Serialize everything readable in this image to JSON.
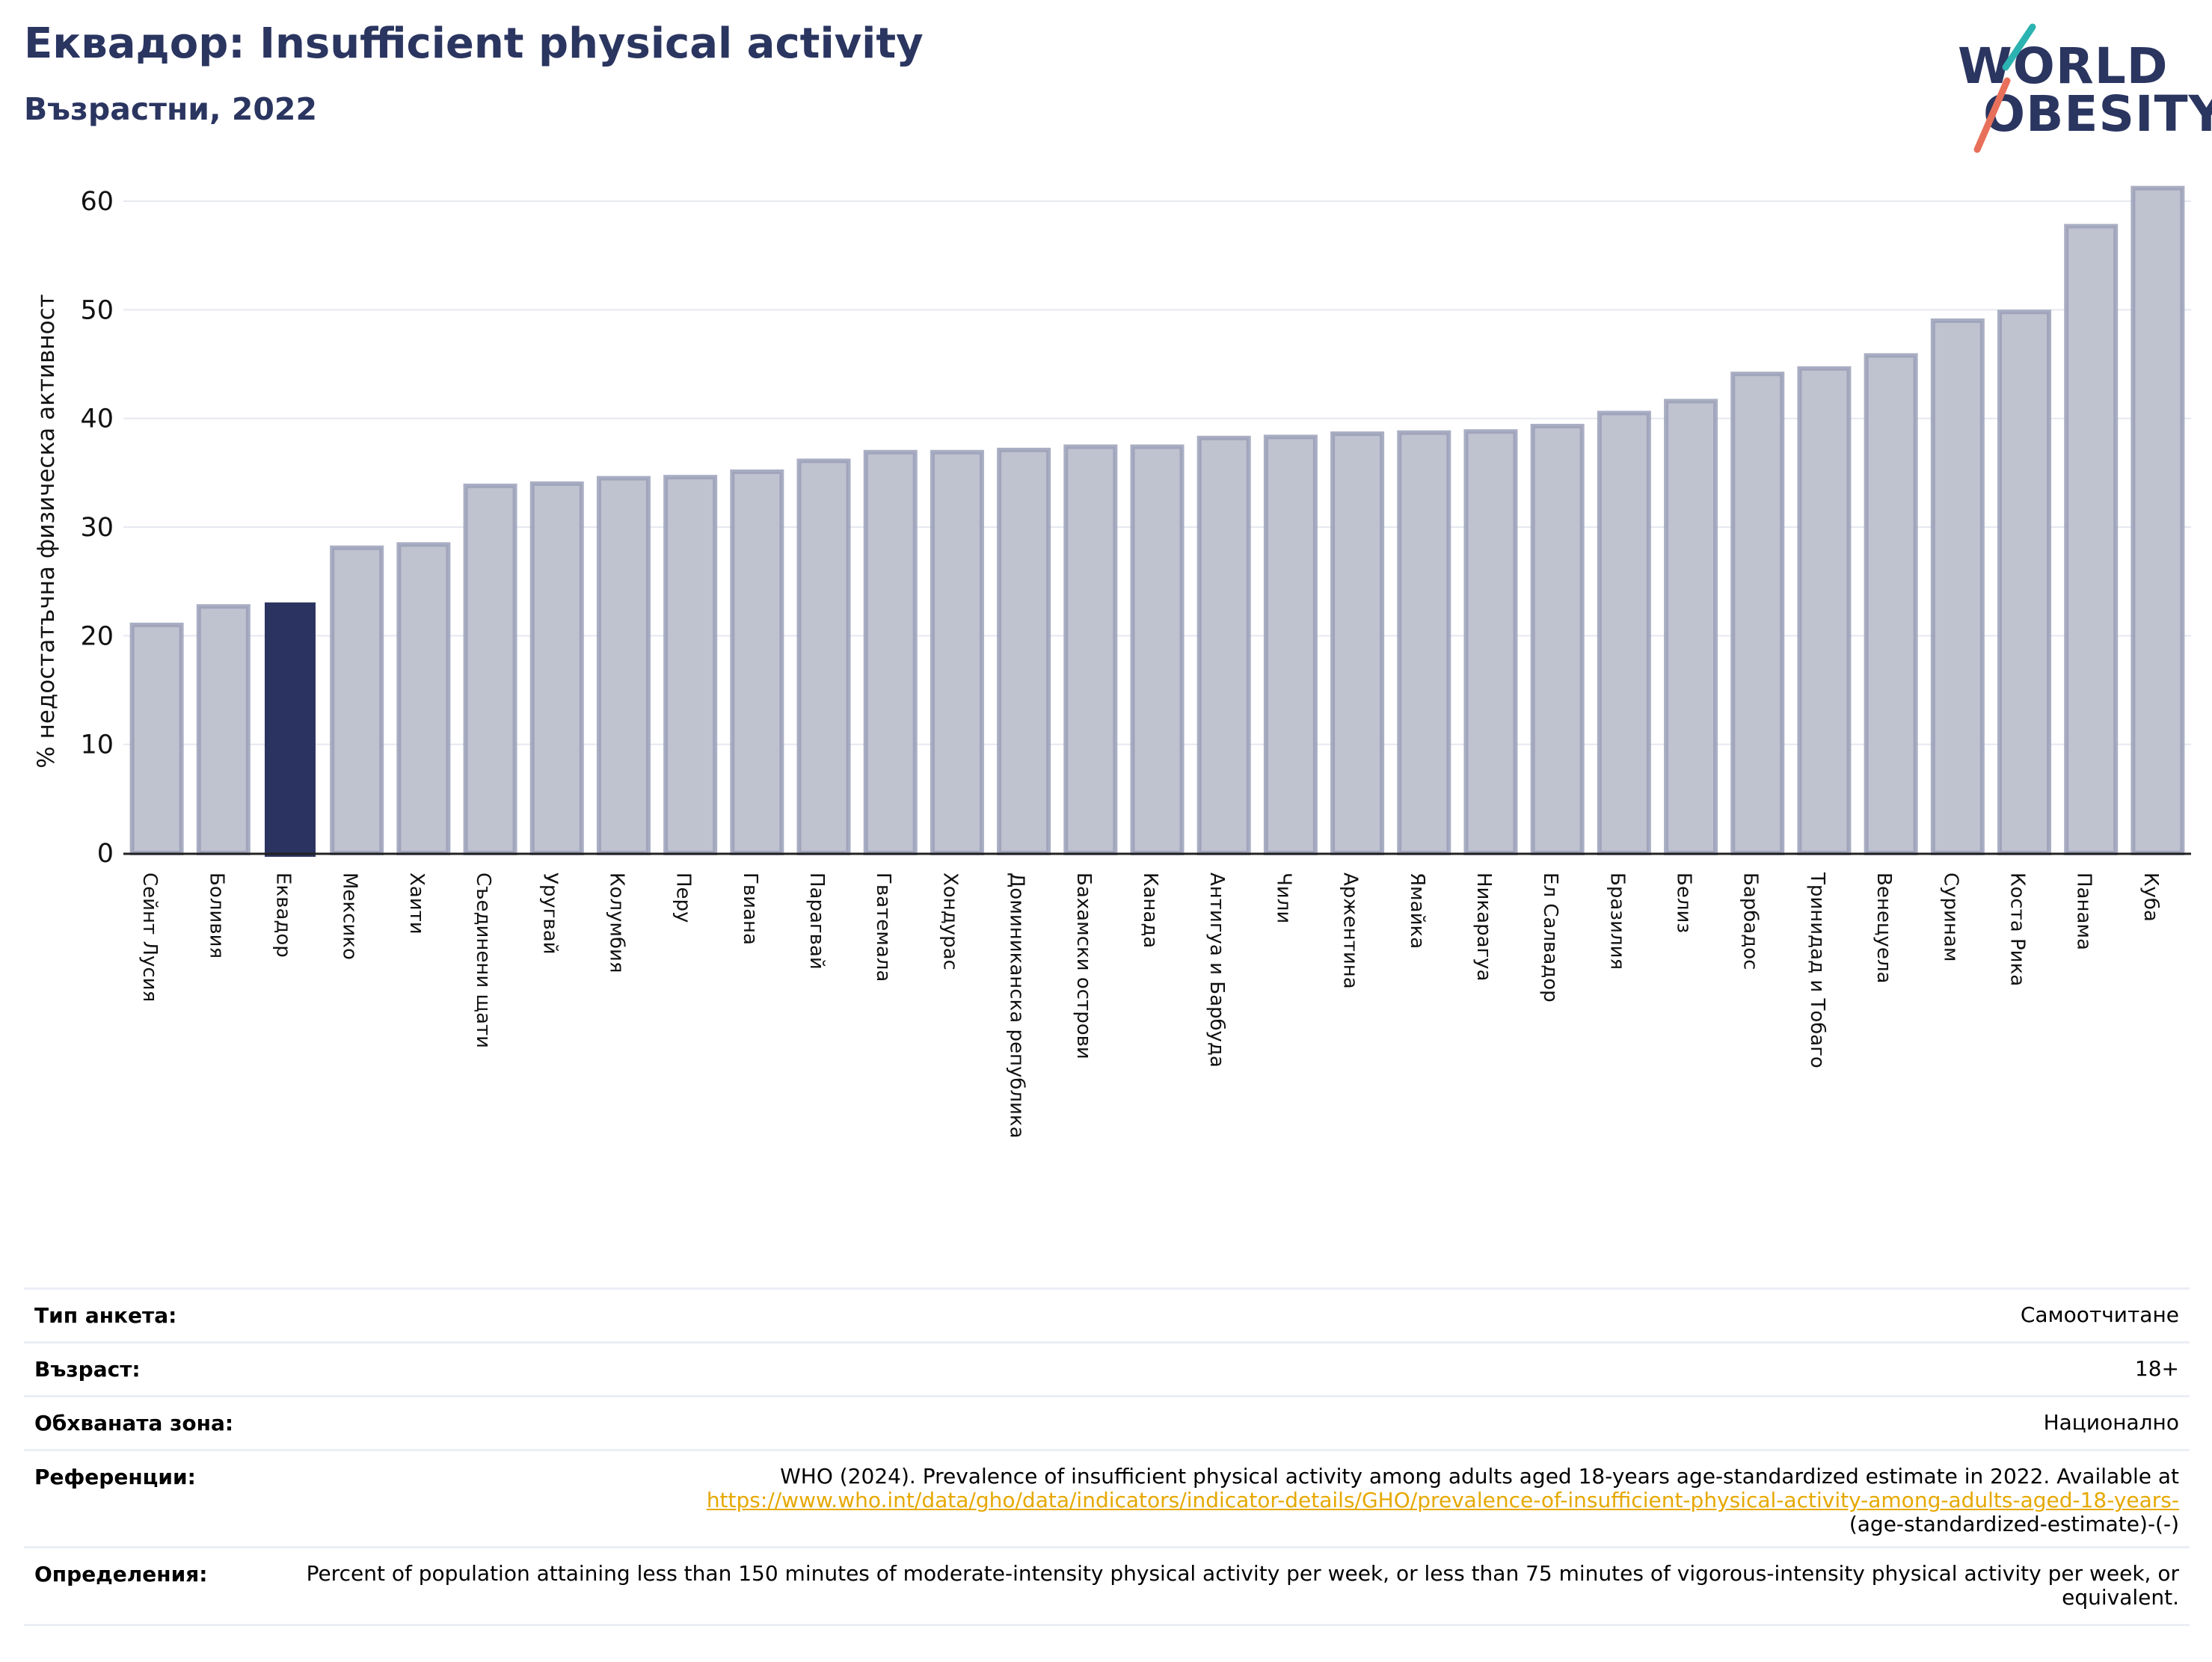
{
  "header": {
    "title": "Еквадор: Insufficient physical activity",
    "subtitle": "Възрастни, 2022"
  },
  "logo": {
    "line1": "WORLD",
    "line2": "OBESITY"
  },
  "colors": {
    "highlight": "#2b3461",
    "bar": "#bfc2cf",
    "bar_edge": "#9aa0b8",
    "title": "#2a3560",
    "link": "#e6a800"
  },
  "chart_data": {
    "type": "bar",
    "ylabel": "% недостатъчна физическа активност",
    "ylim": [
      0,
      62
    ],
    "yticks": [
      0,
      10,
      20,
      30,
      40,
      50,
      60
    ],
    "grid": true,
    "highlight": "Еквадор",
    "categories": [
      "Сейнт Лусия",
      "Боливия",
      "Еквадор",
      "Мексико",
      "Хаити",
      "Съединени щати",
      "Уругвай",
      "Колумбия",
      "Перу",
      "Гвиана",
      "Парагвай",
      "Гватемала",
      "Хондурас",
      "Доминиканска република",
      "Бахамски острови",
      "Канада",
      "Антигуа и Барбуда",
      "Чили",
      "Аржентина",
      "Ямайка",
      "Никарагуа",
      "Ел Салвадор",
      "Бразилия",
      "Белиз",
      "Барбадос",
      "Тринидад и Тобаго",
      "Венецуела",
      "Суринам",
      "Коста Рика",
      "Панама",
      "Куба"
    ],
    "values": [
      21.0,
      22.7,
      23.0,
      28.1,
      28.4,
      33.8,
      34.0,
      34.5,
      34.6,
      35.1,
      36.1,
      36.9,
      36.9,
      37.1,
      37.4,
      37.4,
      38.2,
      38.3,
      38.6,
      38.7,
      38.8,
      39.3,
      40.5,
      41.6,
      44.1,
      44.6,
      45.8,
      49.0,
      49.8,
      57.7,
      61.2
    ]
  },
  "info": {
    "survey_label": "Тип анкета:",
    "survey_value": "Самоотчитане",
    "age_label": "Възраст:",
    "age_value": "18+",
    "area_label": "Обхваната зона:",
    "area_value": "Национално",
    "ref_label": "Референции:",
    "ref_text": "WHO (2024). Prevalence of insufficient physical activity among adults aged 18-years age-standardized estimate in 2022. Available at",
    "ref_link": "https://www.who.int/data/gho/data/indicators/indicator-details/GHO/prevalence-of-insufficient-physical-activity-among-adults-aged-18-years-",
    "ref_tail": "(age-standardized-estimate)-(-)",
    "def_label": "Определения:",
    "def_text": "Percent of population attaining less than 150 minutes of moderate-intensity physical activity per week, or less than 75 minutes of vigorous-intensity physical activity per week, or equivalent."
  }
}
